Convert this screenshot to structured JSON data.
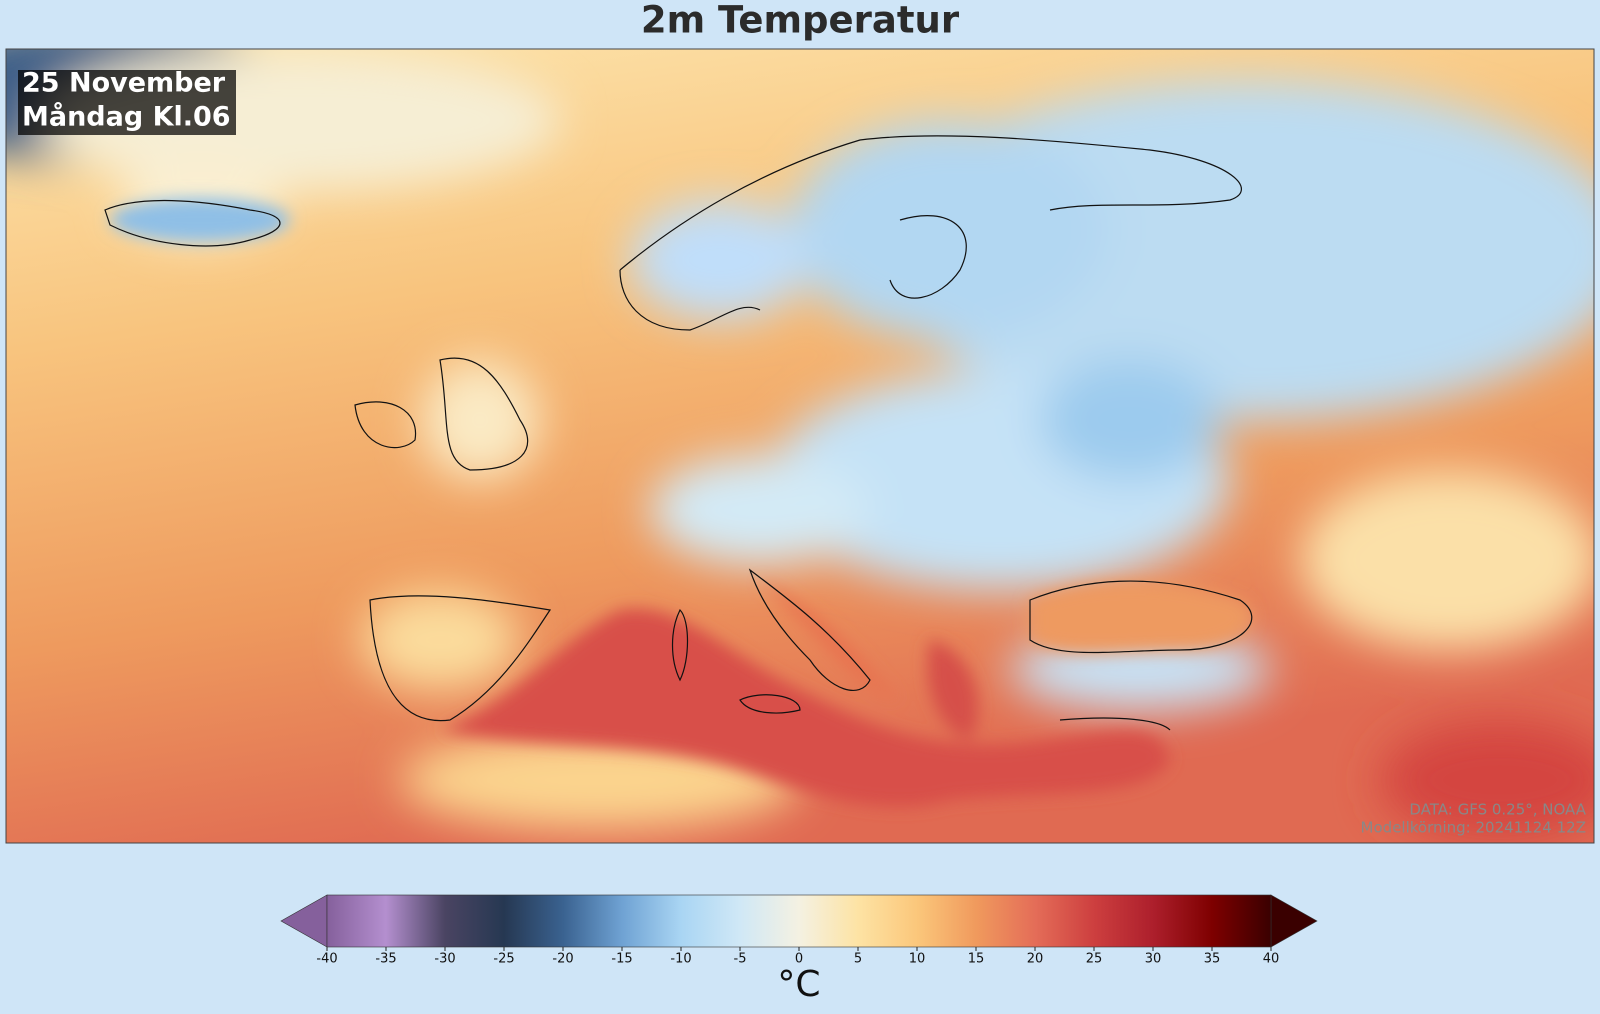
{
  "title": "2m Temperatur",
  "map": {
    "date": "25 November",
    "time": "Måndag  Kl.06",
    "credits": [
      "DATA: GFS 0.25°, NOAA",
      "Modellkörning: 20241124 12Z"
    ]
  },
  "colorbar": {
    "label": "°C",
    "lim": [
      -40,
      40
    ],
    "ticks": [
      -40,
      -35,
      -30,
      -25,
      -20,
      -15,
      -10,
      -5,
      0,
      5,
      10,
      15,
      20,
      25,
      30,
      35,
      40
    ],
    "colors": [
      "#85609c",
      "#b48fcf",
      "#4a4462",
      "#263852",
      "#3a6290",
      "#6fa2d3",
      "#a9d5f3",
      "#d0e8f6",
      "#f4f1e2",
      "#fde3a4",
      "#fbc77b",
      "#f09a5d",
      "#e46d58",
      "#cd3f3f",
      "#ad1f2c",
      "#7e0000",
      "#3a0000"
    ]
  }
}
